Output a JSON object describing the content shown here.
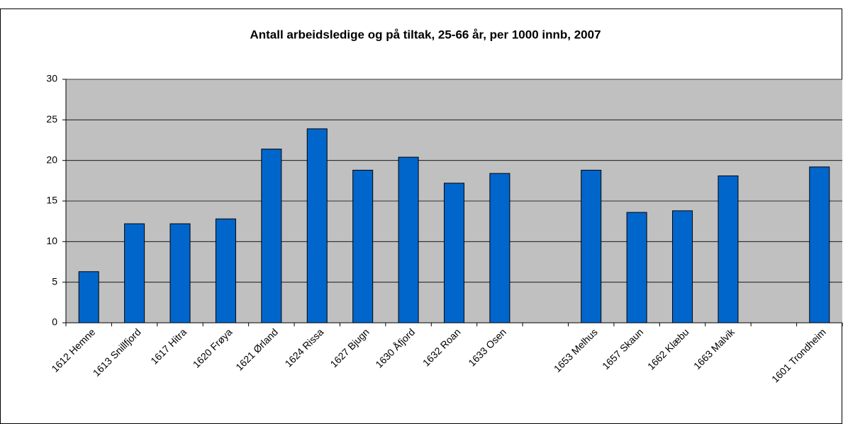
{
  "chart_data": {
    "type": "bar",
    "title": "Antall arbeidsledige og på tiltak, 25-66 år, per 1000 innb, 2007",
    "categories": [
      "1612 Hemne",
      "1613 Snillfjord",
      "1617 Hitra",
      "1620 Frøya",
      "1621 Ørland",
      "1624 Rissa",
      "1627 Bjugn",
      "1630 Åfjord",
      "1632 Roan",
      "1633 Osen",
      null,
      "1653 Melhus",
      "1657 Skaun",
      "1662 Klæbu",
      "1663 Malvik",
      null,
      "1601 Trondheim"
    ],
    "values": [
      6.3,
      12.2,
      12.2,
      12.8,
      21.4,
      23.9,
      18.8,
      20.4,
      17.2,
      18.4,
      null,
      18.8,
      13.6,
      13.8,
      18.1,
      null,
      19.2
    ],
    "color": "#0066cc",
    "ylim": [
      0,
      30
    ],
    "yticks": [
      0,
      5,
      10,
      15,
      20,
      25,
      30
    ],
    "grid": true
  }
}
